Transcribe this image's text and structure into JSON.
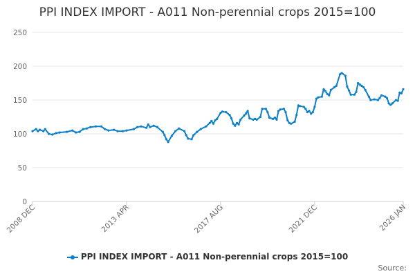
{
  "title": "PPI INDEX IMPORT - A011 Non-perennial crops 2015=100",
  "source_label": "Source:",
  "colors": {
    "series": "#0b7fc7",
    "grid": "#e6e6e6",
    "axis": "#cccccc"
  },
  "chart_data": {
    "type": "line",
    "title": "PPI INDEX IMPORT - A011 Non-perennial crops 2015=100",
    "xlabel": "",
    "ylabel": "",
    "ylim": [
      0,
      250
    ],
    "yticks": [
      0,
      50,
      100,
      150,
      200,
      250
    ],
    "xlim": [
      "2008 DEC",
      "2026 JAN"
    ],
    "xtick_labels": [
      "2008 DEC",
      "2013 APR",
      "2017 AUG",
      "2021 DEC",
      "2026 JAN"
    ],
    "grid": true,
    "legend_position": "bottom",
    "series": [
      {
        "name": "PPI INDEX IMPORT - A011 Non-perennial crops 2015=100",
        "color": "#0b7fc7",
        "points": [
          [
            "2008 DEC",
            104
          ],
          [
            "2009 FEB",
            107
          ],
          [
            "2009 MAR",
            104
          ],
          [
            "2009 APR",
            106
          ],
          [
            "2009 JUN",
            104
          ],
          [
            "2009 JUL",
            107
          ],
          [
            "2009 SEP",
            100
          ],
          [
            "2009 NOV",
            99
          ],
          [
            "2010 JAN",
            101
          ],
          [
            "2010 MAR",
            102
          ],
          [
            "2010 JUL",
            103
          ],
          [
            "2010 OCT",
            105
          ],
          [
            "2010 DEC",
            102
          ],
          [
            "2011 FEB",
            103
          ],
          [
            "2011 APR",
            107
          ],
          [
            "2011 JUN",
            108
          ],
          [
            "2011 AUG",
            110
          ],
          [
            "2011 NOV",
            111
          ],
          [
            "2012 FEB",
            111
          ],
          [
            "2012 APR",
            107
          ],
          [
            "2012 JUN",
            105
          ],
          [
            "2012 SEP",
            106
          ],
          [
            "2012 NOV",
            104
          ],
          [
            "2013 FEB",
            104
          ],
          [
            "2013 APR",
            105
          ],
          [
            "2013 AUG",
            107
          ],
          [
            "2013 OCT",
            110
          ],
          [
            "2013 DEC",
            111
          ],
          [
            "2014 MAR",
            109
          ],
          [
            "2014 APR",
            114
          ],
          [
            "2014 MAY",
            110
          ],
          [
            "2014 JUL",
            112
          ],
          [
            "2014 SEP",
            110
          ],
          [
            "2014 DEC",
            103
          ],
          [
            "2015 JAN",
            98
          ],
          [
            "2015 FEB",
            92
          ],
          [
            "2015 MAR",
            88
          ],
          [
            "2015 MAY",
            97
          ],
          [
            "2015 JUL",
            104
          ],
          [
            "2015 SEP",
            108
          ],
          [
            "2015 DEC",
            104
          ],
          [
            "2016 JAN",
            98
          ],
          [
            "2016 FEB",
            93
          ],
          [
            "2016 APR",
            92
          ],
          [
            "2016 MAY",
            98
          ],
          [
            "2016 JUL",
            103
          ],
          [
            "2016 SEP",
            107
          ],
          [
            "2016 DEC",
            111
          ],
          [
            "2017 FEB",
            116
          ],
          [
            "2017 MAR",
            119
          ],
          [
            "2017 APR",
            115
          ],
          [
            "2017 MAY",
            120
          ],
          [
            "2017 JUN",
            122
          ],
          [
            "2017 AUG",
            131
          ],
          [
            "2017 SEP",
            133
          ],
          [
            "2017 NOV",
            132
          ],
          [
            "2018 JAN",
            128
          ],
          [
            "2018 FEB",
            123
          ],
          [
            "2018 MAR",
            115
          ],
          [
            "2018 APR",
            112
          ],
          [
            "2018 MAY",
            116
          ],
          [
            "2018 JUN",
            114
          ],
          [
            "2018 JUL",
            121
          ],
          [
            "2018 SEP",
            127
          ],
          [
            "2018 OCT",
            130
          ],
          [
            "2018 NOV",
            134
          ],
          [
            "2018 DEC",
            123
          ],
          [
            "2019 FEB",
            121
          ],
          [
            "2019 MAR",
            122
          ],
          [
            "2019 APR",
            121
          ],
          [
            "2019 JUN",
            125
          ],
          [
            "2019 JUL",
            137
          ],
          [
            "2019 SEP",
            137
          ],
          [
            "2019 OCT",
            132
          ],
          [
            "2019 NOV",
            124
          ],
          [
            "2020 JAN",
            122
          ],
          [
            "2020 FEB",
            124
          ],
          [
            "2020 MAR",
            121
          ],
          [
            "2020 APR",
            134
          ],
          [
            "2020 MAY",
            136
          ],
          [
            "2020 JUL",
            137
          ],
          [
            "2020 AUG",
            132
          ],
          [
            "2020 SEP",
            120
          ],
          [
            "2020 OCT",
            116
          ],
          [
            "2020 NOV",
            115
          ],
          [
            "2021 JAN",
            118
          ],
          [
            "2021 FEB",
            128
          ],
          [
            "2021 MAR",
            142
          ],
          [
            "2021 APR",
            141
          ],
          [
            "2021 JUN",
            140
          ],
          [
            "2021 JUL",
            137
          ],
          [
            "2021 AUG",
            132
          ],
          [
            "2021 SEP",
            134
          ],
          [
            "2021 OCT",
            130
          ],
          [
            "2021 NOV",
            132
          ],
          [
            "2021 DEC",
            140
          ],
          [
            "2022 JAN",
            152
          ],
          [
            "2022 FEB",
            154
          ],
          [
            "2022 APR",
            155
          ],
          [
            "2022 MAY",
            166
          ],
          [
            "2022 JUN",
            163
          ],
          [
            "2022 JUL",
            159
          ],
          [
            "2022 AUG",
            157
          ],
          [
            "2022 SEP",
            165
          ],
          [
            "2022 NOV",
            169
          ],
          [
            "2022 DEC",
            171
          ],
          [
            "2023 FEB",
            188
          ],
          [
            "2023 MAR",
            190
          ],
          [
            "2023 MAY",
            186
          ],
          [
            "2023 JUN",
            170
          ],
          [
            "2023 JUL",
            164
          ],
          [
            "2023 AUG",
            158
          ],
          [
            "2023 OCT",
            158
          ],
          [
            "2023 NOV",
            162
          ],
          [
            "2023 DEC",
            175
          ],
          [
            "2024 JAN",
            173
          ],
          [
            "2024 FEB",
            171
          ],
          [
            "2024 MAR",
            169
          ],
          [
            "2024 APR",
            165
          ],
          [
            "2024 JUN",
            155
          ],
          [
            "2024 JUL",
            150
          ],
          [
            "2024 SEP",
            151
          ],
          [
            "2024 NOV",
            150
          ],
          [
            "2024 DEC",
            153
          ],
          [
            "2025 JAN",
            157
          ],
          [
            "2025 MAR",
            155
          ],
          [
            "2025 APR",
            153
          ],
          [
            "2025 MAY",
            145
          ],
          [
            "2025 JUN",
            143
          ],
          [
            "2025 JUL",
            145
          ],
          [
            "2025 SEP",
            150
          ],
          [
            "2025 OCT",
            149
          ],
          [
            "2025 NOV",
            161
          ],
          [
            "2025 DEC",
            160
          ],
          [
            "2026 JAN",
            166
          ]
        ]
      }
    ]
  }
}
